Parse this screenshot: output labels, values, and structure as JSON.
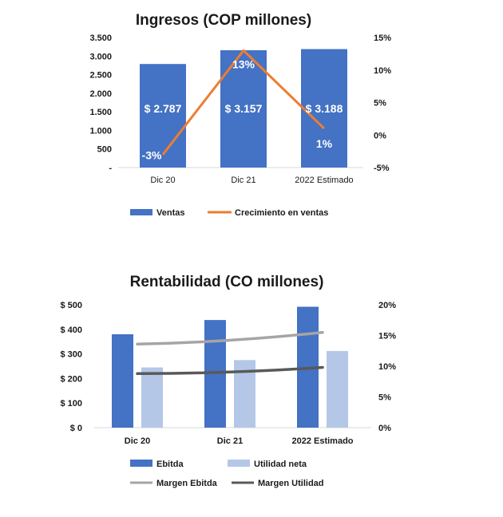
{
  "colors": {
    "ventas": "#4472C4",
    "crecimiento": "#ED7D31",
    "ebitda": "#4472C4",
    "utilidad": "#B4C7E7",
    "margen_ebitda": "#A5A5A5",
    "margen_utilidad": "#595959"
  },
  "chart_data": [
    {
      "type": "bar",
      "title": "Ingresos (COP millones)",
      "categories": [
        "Dic 20",
        "Dic 21",
        "2022 Estimado"
      ],
      "y_ticks": [
        "3.500",
        "3.000",
        "2.500",
        "2.000",
        "1.500",
        "1.000",
        "500",
        "-"
      ],
      "y2_ticks": [
        "15%",
        "10%",
        "5%",
        "0%",
        "-5%"
      ],
      "ylim": [
        0,
        3500
      ],
      "y2lim": [
        -5,
        15
      ],
      "series": [
        {
          "name": "Ventas",
          "kind": "bar",
          "axis": "left",
          "values": [
            2787,
            3157,
            3188
          ],
          "labels": [
            "$ 2.787",
            "$ 3.157",
            "$ 3.188"
          ]
        },
        {
          "name": "Crecimiento en ventas",
          "kind": "line",
          "axis": "right",
          "values": [
            -3,
            13,
            1
          ],
          "labels": [
            "-3%",
            "13%",
            "1%"
          ]
        }
      ],
      "legend": "bottom"
    },
    {
      "type": "bar",
      "title": "Rentabilidad (CO millones)",
      "categories": [
        "Dic 20",
        "Dic 21",
        "2022 Estimado"
      ],
      "y_ticks": [
        "$ 500",
        "$ 400",
        "$ 300",
        "$ 200",
        "$ 100",
        "$ 0"
      ],
      "y2_ticks": [
        "20%",
        "15%",
        "10%",
        "5%",
        "0%"
      ],
      "ylim": [
        0,
        500
      ],
      "y2lim": [
        0,
        20
      ],
      "series": [
        {
          "name": "Ebitda",
          "kind": "bar",
          "axis": "left",
          "values": [
            380,
            438,
            492
          ]
        },
        {
          "name": "Utilidad neta",
          "kind": "bar",
          "axis": "left",
          "values": [
            245,
            275,
            312
          ]
        },
        {
          "name": "Margen Ebitda",
          "kind": "line",
          "axis": "right",
          "values": [
            13.6,
            13.9,
            15.5
          ]
        },
        {
          "name": "Margen Utilidad",
          "kind": "line",
          "axis": "right",
          "values": [
            8.8,
            8.8,
            9.8
          ]
        }
      ],
      "legend": "bottom"
    }
  ]
}
